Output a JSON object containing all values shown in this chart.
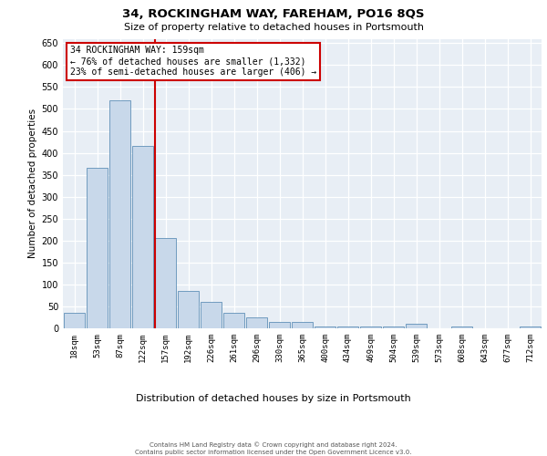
{
  "title1": "34, ROCKINGHAM WAY, FAREHAM, PO16 8QS",
  "title2": "Size of property relative to detached houses in Portsmouth",
  "xlabel": "Distribution of detached houses by size in Portsmouth",
  "ylabel": "Number of detached properties",
  "annotation_line1": "34 ROCKINGHAM WAY: 159sqm",
  "annotation_line2": "← 76% of detached houses are smaller (1,332)",
  "annotation_line3": "23% of semi-detached houses are larger (406) →",
  "categories": [
    "18sqm",
    "53sqm",
    "87sqm",
    "122sqm",
    "157sqm",
    "192sqm",
    "226sqm",
    "261sqm",
    "296sqm",
    "330sqm",
    "365sqm",
    "400sqm",
    "434sqm",
    "469sqm",
    "504sqm",
    "539sqm",
    "573sqm",
    "608sqm",
    "643sqm",
    "677sqm",
    "712sqm"
  ],
  "values": [
    35,
    365,
    520,
    415,
    205,
    85,
    60,
    35,
    25,
    15,
    15,
    5,
    5,
    5,
    5,
    10,
    0,
    5,
    0,
    0,
    5
  ],
  "bar_color": "#c8d8ea",
  "bar_edge_color": "#6090b8",
  "vline_color": "#cc0000",
  "vline_index": 4,
  "annotation_box_edgecolor": "#cc0000",
  "plot_bg_color": "#e8eef5",
  "grid_color": "#ffffff",
  "ylim_max": 660,
  "yticks": [
    0,
    50,
    100,
    150,
    200,
    250,
    300,
    350,
    400,
    450,
    500,
    550,
    600,
    650
  ],
  "footer_line1": "Contains HM Land Registry data © Crown copyright and database right 2024.",
  "footer_line2": "Contains public sector information licensed under the Open Government Licence v3.0."
}
